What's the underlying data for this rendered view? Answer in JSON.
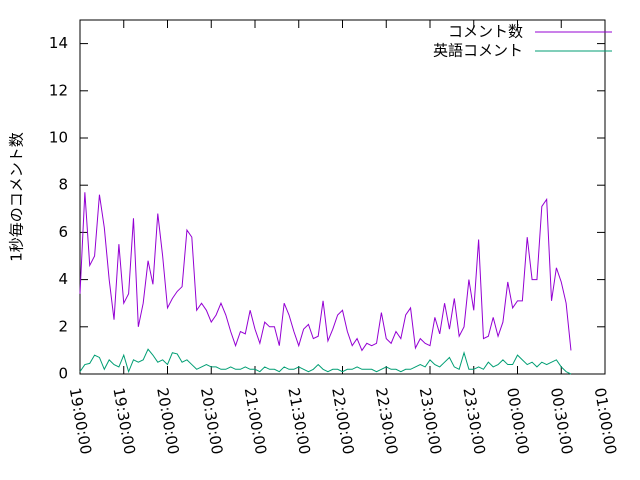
{
  "chart_data": {
    "type": "line",
    "ylabel": "1秒毎のコメント数",
    "x": [
      "19:00:00",
      "19:03:20",
      "19:06:40",
      "19:10:00",
      "19:13:20",
      "19:16:40",
      "19:20:00",
      "19:23:20",
      "19:26:40",
      "19:30:00",
      "19:33:20",
      "19:36:40",
      "19:40:00",
      "19:43:20",
      "19:46:40",
      "19:50:00",
      "19:53:20",
      "19:56:40",
      "20:00:00",
      "20:03:20",
      "20:06:40",
      "20:10:00",
      "20:13:20",
      "20:16:40",
      "20:20:00",
      "20:23:20",
      "20:26:40",
      "20:30:00",
      "20:33:20",
      "20:36:40",
      "20:40:00",
      "20:43:20",
      "20:46:40",
      "20:50:00",
      "20:53:20",
      "20:56:40",
      "21:00:00",
      "21:03:20",
      "21:06:40",
      "21:10:00",
      "21:13:20",
      "21:16:40",
      "21:20:00",
      "21:23:20",
      "21:26:40",
      "21:30:00",
      "21:33:20",
      "21:36:40",
      "21:40:00",
      "21:43:20",
      "21:46:40",
      "21:50:00",
      "21:53:20",
      "21:56:40",
      "22:00:00",
      "22:03:20",
      "22:06:40",
      "22:10:00",
      "22:13:20",
      "22:16:40",
      "22:20:00",
      "22:23:20",
      "22:26:40",
      "22:30:00",
      "22:33:20",
      "22:36:40",
      "22:40:00",
      "22:43:20",
      "22:46:40",
      "22:50:00",
      "22:53:20",
      "22:56:40",
      "23:00:00",
      "23:03:20",
      "23:06:40",
      "23:10:00",
      "23:13:20",
      "23:16:40",
      "23:20:00",
      "23:23:20",
      "23:26:40",
      "23:30:00",
      "23:33:20",
      "23:36:40",
      "23:40:00",
      "23:43:20",
      "23:46:40",
      "23:50:00",
      "23:53:20",
      "23:56:40",
      "00:00:00",
      "00:03:20",
      "00:06:40",
      "00:10:00",
      "00:13:20",
      "00:16:40",
      "00:20:00",
      "00:23:20",
      "00:26:40",
      "00:30:00",
      "00:33:20",
      "00:36:40"
    ],
    "series": [
      {
        "name": "コメント数",
        "color": "#9400d3",
        "values": [
          3.4,
          7.7,
          4.6,
          5.0,
          7.6,
          6.2,
          4.0,
          2.3,
          5.5,
          3.0,
          3.4,
          6.6,
          2.0,
          3.0,
          4.8,
          3.8,
          6.8,
          5.0,
          2.8,
          3.2,
          3.5,
          3.7,
          6.1,
          5.8,
          2.7,
          3.0,
          2.7,
          2.2,
          2.5,
          3.0,
          2.5,
          1.8,
          1.2,
          1.8,
          1.7,
          2.7,
          1.9,
          1.3,
          2.2,
          2.0,
          2.0,
          1.2,
          3.0,
          2.5,
          1.8,
          1.2,
          1.9,
          2.1,
          1.5,
          1.6,
          3.1,
          1.4,
          1.9,
          2.5,
          2.7,
          1.8,
          1.2,
          1.5,
          1.0,
          1.3,
          1.2,
          1.3,
          2.6,
          1.5,
          1.3,
          1.8,
          1.5,
          2.5,
          2.8,
          1.1,
          1.5,
          1.3,
          1.2,
          2.4,
          1.7,
          3.0,
          1.9,
          3.2,
          1.6,
          2.0,
          4.0,
          2.7,
          5.7,
          1.5,
          1.6,
          2.4,
          1.6,
          2.2,
          3.9,
          2.8,
          3.1,
          3.1,
          5.8,
          4.0,
          4.0,
          7.1,
          7.4,
          3.1,
          4.5,
          3.9,
          3.0,
          1.0
        ]
      },
      {
        "name": "英語コメント",
        "color": "#009e73",
        "values": [
          0.1,
          0.4,
          0.45,
          0.8,
          0.7,
          0.2,
          0.6,
          0.4,
          0.3,
          0.8,
          0.1,
          0.6,
          0.5,
          0.6,
          1.05,
          0.8,
          0.5,
          0.6,
          0.4,
          0.9,
          0.85,
          0.5,
          0.6,
          0.4,
          0.2,
          0.3,
          0.4,
          0.3,
          0.3,
          0.2,
          0.2,
          0.3,
          0.2,
          0.2,
          0.3,
          0.2,
          0.2,
          0.1,
          0.3,
          0.2,
          0.2,
          0.1,
          0.3,
          0.2,
          0.2,
          0.3,
          0.2,
          0.1,
          0.2,
          0.4,
          0.2,
          0.1,
          0.2,
          0.2,
          0.1,
          0.2,
          0.2,
          0.3,
          0.2,
          0.2,
          0.2,
          0.1,
          0.2,
          0.3,
          0.2,
          0.2,
          0.1,
          0.2,
          0.2,
          0.3,
          0.4,
          0.3,
          0.6,
          0.4,
          0.3,
          0.5,
          0.7,
          0.3,
          0.2,
          0.9,
          0.2,
          0.2,
          0.3,
          0.2,
          0.5,
          0.3,
          0.4,
          0.6,
          0.4,
          0.4,
          0.8,
          0.6,
          0.4,
          0.5,
          0.3,
          0.5,
          0.4,
          0.5,
          0.6,
          0.3,
          0.1,
          0.0
        ]
      }
    ],
    "xlim": [
      "19:00:00",
      "01:00:00"
    ],
    "xticks": [
      "19:00:00",
      "19:30:00",
      "20:00:00",
      "20:30:00",
      "21:00:00",
      "21:30:00",
      "22:00:00",
      "22:30:00",
      "23:00:00",
      "23:30:00",
      "00:00:00",
      "00:30:00",
      "01:00:00"
    ],
    "ylim": [
      0,
      15
    ],
    "yticks": [
      0,
      2,
      4,
      6,
      8,
      10,
      12,
      14
    ],
    "legend": "top right"
  }
}
